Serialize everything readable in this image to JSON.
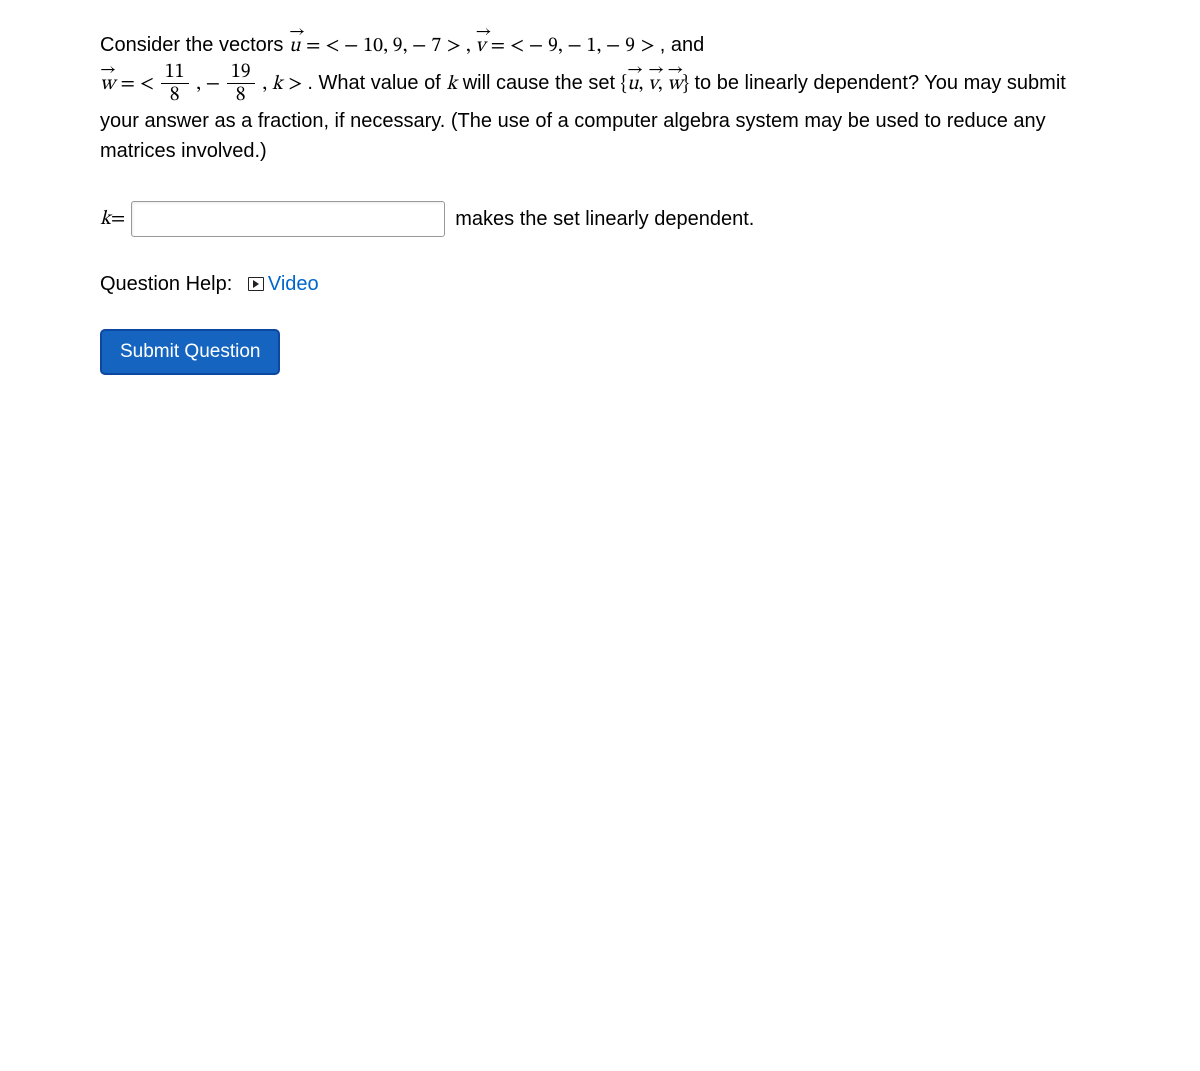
{
  "question": {
    "part1": "Consider the vectors ",
    "u_vec": "u",
    "eq": " = ",
    "open": " < ",
    "close": " > ",
    "u_vals": " − 10, 9,  − 7",
    "comma_sep": " , ",
    "v_vec": "v",
    "v_vals": " − 9,  − 1,  − 9",
    "and": " , and",
    "w_vec": "w",
    "w_frac1_num": "11",
    "w_frac1_den": "8",
    "w_mid": ",  − ",
    "w_frac2_num": "19",
    "w_frac2_den": "8",
    "w_tail": ", ",
    "k": "k",
    "part2a": " . What value of ",
    "part2b": " will cause the set ",
    "set_open": "{",
    "set_close": "}",
    "set_sep": ", ",
    "part2c": " to be linearly dependent? You may submit your answer as a fraction, if necessary. (The use of a computer algebra system may be used to reduce any matrices involved.)"
  },
  "answer": {
    "label_pre": "k",
    "label_eq": " = ",
    "placeholder": "",
    "label_post": "makes the set linearly dependent."
  },
  "help": {
    "label": "Question Help:",
    "video": "Video"
  },
  "buttons": {
    "submit": "Submit Question"
  },
  "colors": {
    "link": "#0066cc",
    "button_bg": "#1565c0",
    "button_border": "#0d47a1",
    "text": "#000000",
    "background": "#ffffff"
  }
}
